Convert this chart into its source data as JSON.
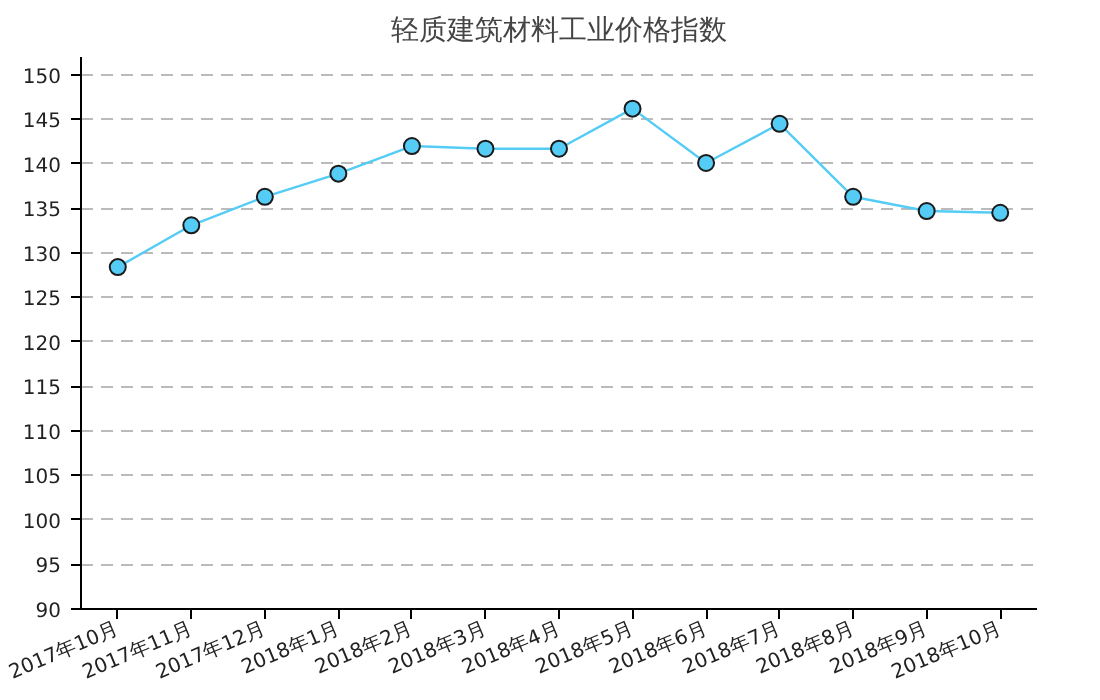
{
  "chart_data": {
    "type": "line",
    "title": "轻质建筑材料工业价格指数",
    "categories": [
      "2017年10月",
      "2017年11月",
      "2017年12月",
      "2018年1月",
      "2018年2月",
      "2018年3月",
      "2018年4月",
      "2018年5月",
      "2018年6月",
      "2018年7月",
      "2018年8月",
      "2018年9月",
      "2018年10月"
    ],
    "series": [
      {
        "color": "#55ccf5",
        "values": [
          128.4,
          133.1,
          136.3,
          138.9,
          142.0,
          141.7,
          141.7,
          146.2,
          140.1,
          144.5,
          136.3,
          134.7,
          134.5
        ]
      }
    ],
    "ylim": [
      90,
      152
    ],
    "yticks": [
      90,
      95,
      100,
      105,
      110,
      115,
      120,
      125,
      130,
      135,
      140,
      145,
      150
    ],
    "grid": "y",
    "marker": "circle",
    "line_style": "solid"
  }
}
